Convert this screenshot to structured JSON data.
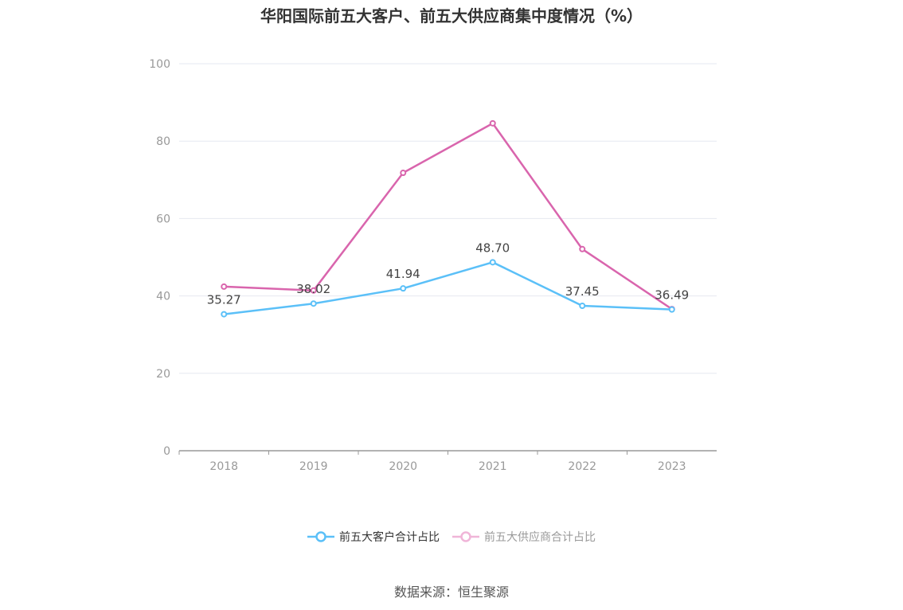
{
  "chart_data": {
    "type": "line",
    "title": "华阳国际前五大客户、前五大供应商集中度情况（%）",
    "categories": [
      "2018",
      "2019",
      "2020",
      "2021",
      "2022",
      "2023"
    ],
    "ylim": [
      0,
      100
    ],
    "yticks": [
      "0",
      "20",
      "40",
      "60",
      "80",
      "100"
    ],
    "grid": true,
    "legend_position": "bottom",
    "series": [
      {
        "name": "前五大客户合计占比",
        "color": "#5bc0f8",
        "values": [
          35.27,
          38.02,
          41.94,
          48.7,
          37.45,
          36.49
        ],
        "labels": [
          "35.27",
          "38.02",
          "41.94",
          "48.70",
          "37.45",
          "36.49"
        ]
      },
      {
        "name": "前五大供应商合计占比",
        "color": "#d965ad",
        "legend_color": "#f0b5d8",
        "values": [
          42.4,
          41.4,
          71.8,
          84.6,
          52.1,
          36.6
        ]
      }
    ]
  },
  "source": "数据来源：恒生聚源"
}
